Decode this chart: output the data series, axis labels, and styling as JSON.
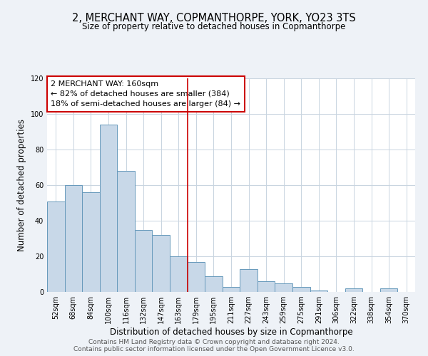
{
  "title": "2, MERCHANT WAY, COPMANTHORPE, YORK, YO23 3TS",
  "subtitle": "Size of property relative to detached houses in Copmanthorpe",
  "xlabel": "Distribution of detached houses by size in Copmanthorpe",
  "ylabel": "Number of detached properties",
  "footer1": "Contains HM Land Registry data © Crown copyright and database right 2024.",
  "footer2": "Contains public sector information licensed under the Open Government Licence v3.0.",
  "bin_labels": [
    "52sqm",
    "68sqm",
    "84sqm",
    "100sqm",
    "116sqm",
    "132sqm",
    "147sqm",
    "163sqm",
    "179sqm",
    "195sqm",
    "211sqm",
    "227sqm",
    "243sqm",
    "259sqm",
    "275sqm",
    "291sqm",
    "306sqm",
    "322sqm",
    "338sqm",
    "354sqm",
    "370sqm"
  ],
  "bar_heights": [
    51,
    60,
    56,
    94,
    68,
    35,
    32,
    20,
    17,
    9,
    3,
    13,
    6,
    5,
    3,
    1,
    0,
    2,
    0,
    2,
    0
  ],
  "bar_color": "#c8d8e8",
  "bar_edge_color": "#6699bb",
  "annotation_line1": "2 MERCHANT WAY: 160sqm",
  "annotation_line2": "← 82% of detached houses are smaller (384)",
  "annotation_line3": "18% of semi-detached houses are larger (84) →",
  "annotation_box_edge_color": "#cc0000",
  "vline_x_index": 7.5,
  "vline_color": "#cc0000",
  "ylim": [
    0,
    120
  ],
  "yticks": [
    0,
    20,
    40,
    60,
    80,
    100,
    120
  ],
  "background_color": "#eef2f7",
  "plot_background": "#ffffff",
  "grid_color": "#c8d4e0",
  "title_fontsize": 10.5,
  "subtitle_fontsize": 8.5,
  "xlabel_fontsize": 8.5,
  "ylabel_fontsize": 8.5,
  "footer_fontsize": 6.5,
  "tick_fontsize": 7,
  "annot_fontsize": 8
}
